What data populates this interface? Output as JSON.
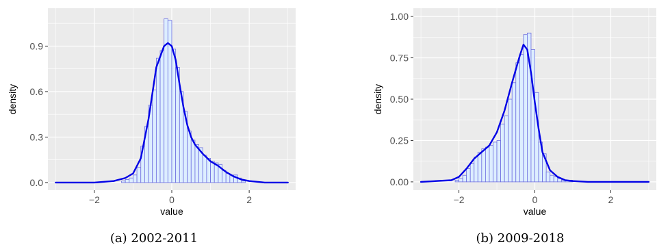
{
  "chart_data": [
    {
      "type": "histogram+line",
      "caption": "(a) 2002-2011",
      "xlabel": "value",
      "ylabel": "density",
      "xlim": [
        -3.2,
        3.2
      ],
      "ylim": [
        -0.05,
        1.15
      ],
      "xticks": [
        -2,
        0,
        2
      ],
      "xtick_labels": [
        "−2",
        "0",
        "2"
      ],
      "yticks": [
        0,
        0.3,
        0.6,
        0.9
      ],
      "ytick_labels": [
        "0.0",
        "0.3",
        "0.6",
        "0.9"
      ],
      "grid": true,
      "histogram": {
        "bin_width": 0.1,
        "bins": [
          {
            "x0": -1.3,
            "d": 0.01
          },
          {
            "x0": -1.2,
            "d": 0.02
          },
          {
            "x0": -1.1,
            "d": 0.03
          },
          {
            "x0": -1.0,
            "d": 0.05
          },
          {
            "x0": -0.9,
            "d": 0.1
          },
          {
            "x0": -0.8,
            "d": 0.24
          },
          {
            "x0": -0.7,
            "d": 0.37
          },
          {
            "x0": -0.6,
            "d": 0.51
          },
          {
            "x0": -0.5,
            "d": 0.61
          },
          {
            "x0": -0.4,
            "d": 0.82
          },
          {
            "x0": -0.3,
            "d": 0.87
          },
          {
            "x0": -0.2,
            "d": 1.08
          },
          {
            "x0": -0.1,
            "d": 1.07
          },
          {
            "x0": 0.0,
            "d": 0.88
          },
          {
            "x0": 0.1,
            "d": 0.76
          },
          {
            "x0": 0.2,
            "d": 0.6
          },
          {
            "x0": 0.3,
            "d": 0.47
          },
          {
            "x0": 0.4,
            "d": 0.34
          },
          {
            "x0": 0.5,
            "d": 0.28
          },
          {
            "x0": 0.6,
            "d": 0.25
          },
          {
            "x0": 0.7,
            "d": 0.23
          },
          {
            "x0": 0.8,
            "d": 0.18
          },
          {
            "x0": 0.9,
            "d": 0.16
          },
          {
            "x0": 1.0,
            "d": 0.14
          },
          {
            "x0": 1.1,
            "d": 0.13
          },
          {
            "x0": 1.2,
            "d": 0.12
          },
          {
            "x0": 1.3,
            "d": 0.08
          },
          {
            "x0": 1.4,
            "d": 0.06
          },
          {
            "x0": 1.5,
            "d": 0.05
          },
          {
            "x0": 1.6,
            "d": 0.05
          },
          {
            "x0": 1.7,
            "d": 0.03
          },
          {
            "x0": 1.8,
            "d": 0.01
          }
        ]
      },
      "density_curve": {
        "x": [
          -3.0,
          -2.0,
          -1.5,
          -1.2,
          -1.0,
          -0.8,
          -0.6,
          -0.4,
          -0.2,
          -0.1,
          0.0,
          0.1,
          0.2,
          0.3,
          0.4,
          0.5,
          0.6,
          0.8,
          1.0,
          1.2,
          1.4,
          1.6,
          1.8,
          2.0,
          2.4,
          3.0
        ],
        "y": [
          0.0,
          0.0,
          0.01,
          0.03,
          0.06,
          0.16,
          0.42,
          0.76,
          0.9,
          0.92,
          0.9,
          0.81,
          0.65,
          0.5,
          0.38,
          0.3,
          0.25,
          0.19,
          0.14,
          0.11,
          0.07,
          0.04,
          0.02,
          0.01,
          0.0,
          0.0
        ]
      },
      "colors": {
        "panel": "#ebebeb",
        "grid": "#ffffff",
        "bar_fill": "#ddeeff",
        "bar_edge": "#6d6ddf",
        "line": "#0000e6"
      }
    },
    {
      "type": "histogram+line",
      "caption": "(b) 2009-2018",
      "xlabel": "value",
      "ylabel": "density",
      "xlim": [
        -3.2,
        3.2
      ],
      "ylim": [
        -0.05,
        1.05
      ],
      "xticks": [
        -2,
        0,
        2
      ],
      "xtick_labels": [
        "−2",
        "0",
        "2"
      ],
      "yticks": [
        0,
        0.25,
        0.5,
        0.75,
        1.0
      ],
      "ytick_labels": [
        "0.00",
        "0.25",
        "0.50",
        "0.75",
        "1.00"
      ],
      "grid": true,
      "histogram": {
        "bin_width": 0.1,
        "bins": [
          {
            "x0": -2.1,
            "d": 0.01
          },
          {
            "x0": -2.0,
            "d": 0.02
          },
          {
            "x0": -1.9,
            "d": 0.04
          },
          {
            "x0": -1.8,
            "d": 0.08
          },
          {
            "x0": -1.7,
            "d": 0.11
          },
          {
            "x0": -1.6,
            "d": 0.15
          },
          {
            "x0": -1.5,
            "d": 0.18
          },
          {
            "x0": -1.4,
            "d": 0.2
          },
          {
            "x0": -1.3,
            "d": 0.21
          },
          {
            "x0": -1.2,
            "d": 0.22
          },
          {
            "x0": -1.1,
            "d": 0.24
          },
          {
            "x0": -1.0,
            "d": 0.25
          },
          {
            "x0": -0.9,
            "d": 0.35
          },
          {
            "x0": -0.8,
            "d": 0.4
          },
          {
            "x0": -0.7,
            "d": 0.5
          },
          {
            "x0": -0.6,
            "d": 0.6
          },
          {
            "x0": -0.5,
            "d": 0.72
          },
          {
            "x0": -0.4,
            "d": 0.77
          },
          {
            "x0": -0.3,
            "d": 0.89
          },
          {
            "x0": -0.2,
            "d": 0.9
          },
          {
            "x0": -0.1,
            "d": 0.8
          },
          {
            "x0": 0.0,
            "d": 0.54
          },
          {
            "x0": 0.1,
            "d": 0.24
          },
          {
            "x0": 0.2,
            "d": 0.17
          },
          {
            "x0": 0.3,
            "d": 0.06
          },
          {
            "x0": 0.4,
            "d": 0.04
          },
          {
            "x0": 0.5,
            "d": 0.03
          },
          {
            "x0": 0.6,
            "d": 0.02
          },
          {
            "x0": 0.7,
            "d": 0.01
          },
          {
            "x0": 0.8,
            "d": 0.01
          },
          {
            "x0": 0.9,
            "d": 0.01
          }
        ]
      },
      "density_curve": {
        "x": [
          -3.0,
          -2.2,
          -2.0,
          -1.8,
          -1.6,
          -1.4,
          -1.2,
          -1.0,
          -0.8,
          -0.6,
          -0.4,
          -0.3,
          -0.2,
          -0.1,
          0.0,
          0.1,
          0.2,
          0.4,
          0.6,
          0.8,
          1.0,
          1.4,
          3.0
        ],
        "y": [
          0.0,
          0.01,
          0.03,
          0.08,
          0.14,
          0.18,
          0.22,
          0.3,
          0.43,
          0.6,
          0.76,
          0.83,
          0.8,
          0.66,
          0.48,
          0.32,
          0.18,
          0.07,
          0.03,
          0.01,
          0.005,
          0.0,
          0.0
        ]
      },
      "colors": {
        "panel": "#ebebeb",
        "grid": "#ffffff",
        "bar_fill": "#ddeeff",
        "bar_edge": "#6d6ddf",
        "line": "#0000e6"
      }
    }
  ]
}
